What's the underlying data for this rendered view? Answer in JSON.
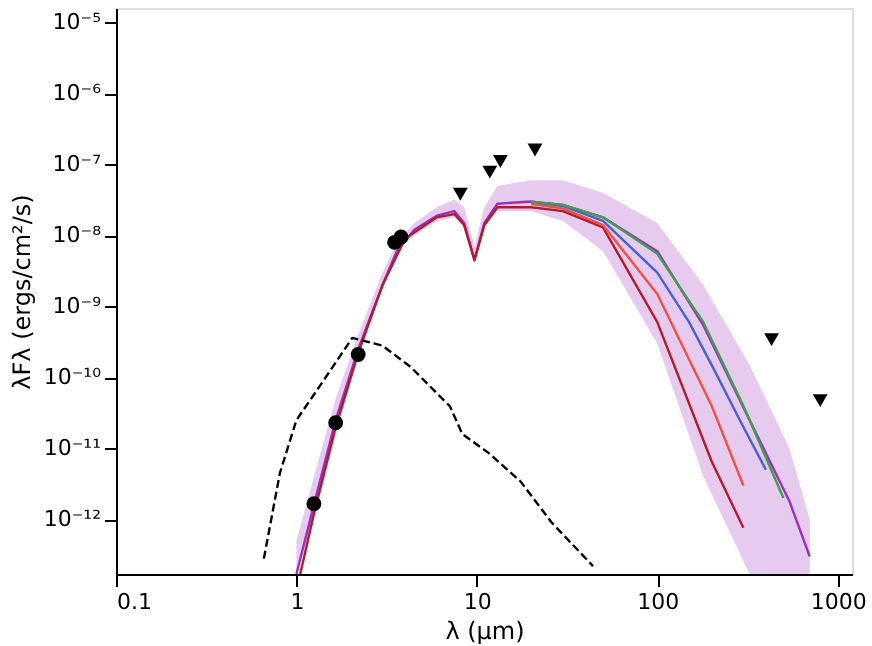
{
  "chart_data": {
    "type": "line",
    "xlabel": "λ (μm)",
    "ylabel": "λFλ (ergs/cm²/s)",
    "log": "xy",
    "xlim": [
      0.1,
      1200
    ],
    "ylim": [
      1.7e-13,
      1.6e-05
    ],
    "xticks": [
      0.1,
      1,
      10,
      100,
      1000
    ],
    "yticks": [
      {
        "value": 1e-12,
        "label": "10⁻¹²"
      },
      {
        "value": 1e-11,
        "label": "10⁻¹¹"
      },
      {
        "value": 1e-10,
        "label": "10⁻¹⁰"
      },
      {
        "value": 1e-09,
        "label": "10⁻⁹"
      },
      {
        "value": 1e-08,
        "label": "10⁻⁸"
      },
      {
        "value": 1e-07,
        "label": "10⁻⁷"
      },
      {
        "value": 1e-06,
        "label": "10⁻⁶"
      },
      {
        "value": 1e-05,
        "label": "10⁻⁵"
      }
    ],
    "grid": false,
    "series": [
      {
        "color": "#9b30c0",
        "x": [
          1.0,
          1.25,
          1.65,
          2.2,
          3,
          3.6,
          4.5,
          6,
          7.5,
          8.5,
          9.7,
          11,
          13,
          20,
          30,
          50,
          100,
          180,
          325,
          540,
          700
        ],
        "values": [
          1.7e-13,
          1.6e-12,
          2.5e-11,
          2.5e-10,
          2e-09,
          6e-09,
          1.2e-08,
          1.9e-08,
          2.2e-08,
          1.5e-08,
          4.5e-09,
          1.5e-08,
          2.8e-08,
          3e-08,
          2.7e-08,
          1.8e-08,
          6e-09,
          5.4e-10,
          2.5e-11,
          1.8e-12,
          3e-13
        ],
        "lower": [
          1.7e-13,
          1e-12,
          1.5e-11,
          2e-10,
          2e-09,
          6e-09,
          1e-08,
          1.6e-08,
          1.8e-08,
          1.3e-08,
          4e-09,
          1.3e-08,
          2.2e-08,
          2.2e-08,
          1.6e-08,
          6e-09,
          3e-10,
          4e-12,
          1.7e-13,
          1.7e-13,
          1.7e-13
        ],
        "upper": [
          5e-13,
          4e-12,
          5e-11,
          4e-10,
          3e-09,
          8e-09,
          1.5e-08,
          2.5e-08,
          3.2e-08,
          2.5e-08,
          7e-09,
          2.5e-08,
          5e-08,
          6e-08,
          6e-08,
          4e-08,
          1.5e-08,
          2e-09,
          1.5e-10,
          1e-11,
          1e-12
        ],
        "line_style": "solid"
      },
      {
        "color": "#b01c2e",
        "x": [
          1.05,
          1.25,
          1.65,
          2.2,
          3,
          4,
          6,
          7.5,
          8.5,
          9.7,
          11,
          13,
          20,
          30,
          50,
          100,
          200,
          300
        ],
        "values": [
          1.7e-13,
          1.2e-12,
          2e-11,
          2.2e-10,
          2e-09,
          9e-09,
          1.8e-08,
          2e-08,
          1.4e-08,
          4.5e-09,
          1.4e-08,
          2.5e-08,
          2.5e-08,
          2.2e-08,
          1.3e-08,
          6e-10,
          6.6e-12,
          7.6e-13
        ],
        "line_style": "solid"
      },
      {
        "color": "#f05040",
        "x": [
          20,
          30,
          50,
          100,
          200,
          300
        ],
        "values": [
          2.8e-08,
          2.4e-08,
          1.4e-08,
          1.5e-09,
          4e-11,
          3e-12
        ],
        "line_style": "solid"
      },
      {
        "color": "#4a5fd0",
        "x": [
          20,
          30,
          50,
          100,
          150,
          200,
          300,
          400
        ],
        "values": [
          3e-08,
          2.6e-08,
          1.6e-08,
          3e-09,
          6e-10,
          1.5e-10,
          2e-11,
          5e-12
        ],
        "line_style": "solid"
      },
      {
        "color": "#3fa050",
        "x": [
          20,
          30,
          50,
          100,
          180,
          300,
          500
        ],
        "values": [
          3e-08,
          2.7e-08,
          1.8e-08,
          5.5e-09,
          6e-10,
          4e-11,
          2e-12
        ],
        "line_style": "solid"
      },
      {
        "color": "#000000",
        "x": [
          0.66,
          0.81,
          1.0,
          1.34,
          2.04,
          3,
          4.3,
          7.1,
          8.3,
          11.7,
          17.5,
          26,
          44
        ],
        "values": [
          2.8e-13,
          4.5e-12,
          2.5e-11,
          7.4e-11,
          3.6e-10,
          2.8e-10,
          1.4e-10,
          3.9e-11,
          1.6e-11,
          8.5e-12,
          3.4e-12,
          9e-13,
          2.2e-13
        ],
        "line_style": "dashed"
      },
      {
        "type": "scatter",
        "color": "#000000",
        "marker": "circle",
        "x": [
          1.25,
          1.65,
          2.2,
          3.5,
          3.8
        ],
        "values": [
          1.66e-12,
          2.3e-11,
          2.1e-10,
          8e-09,
          9.5e-09
        ]
      },
      {
        "type": "scatter",
        "color": "#000000",
        "marker": "triangle",
        "x": [
          8.1,
          11.8,
          13.5,
          21,
          430,
          800
        ],
        "values": [
          3.8e-08,
          7.8e-08,
          1.1e-07,
          1.6e-07,
          3.4e-10,
          4.7e-11
        ]
      }
    ]
  }
}
